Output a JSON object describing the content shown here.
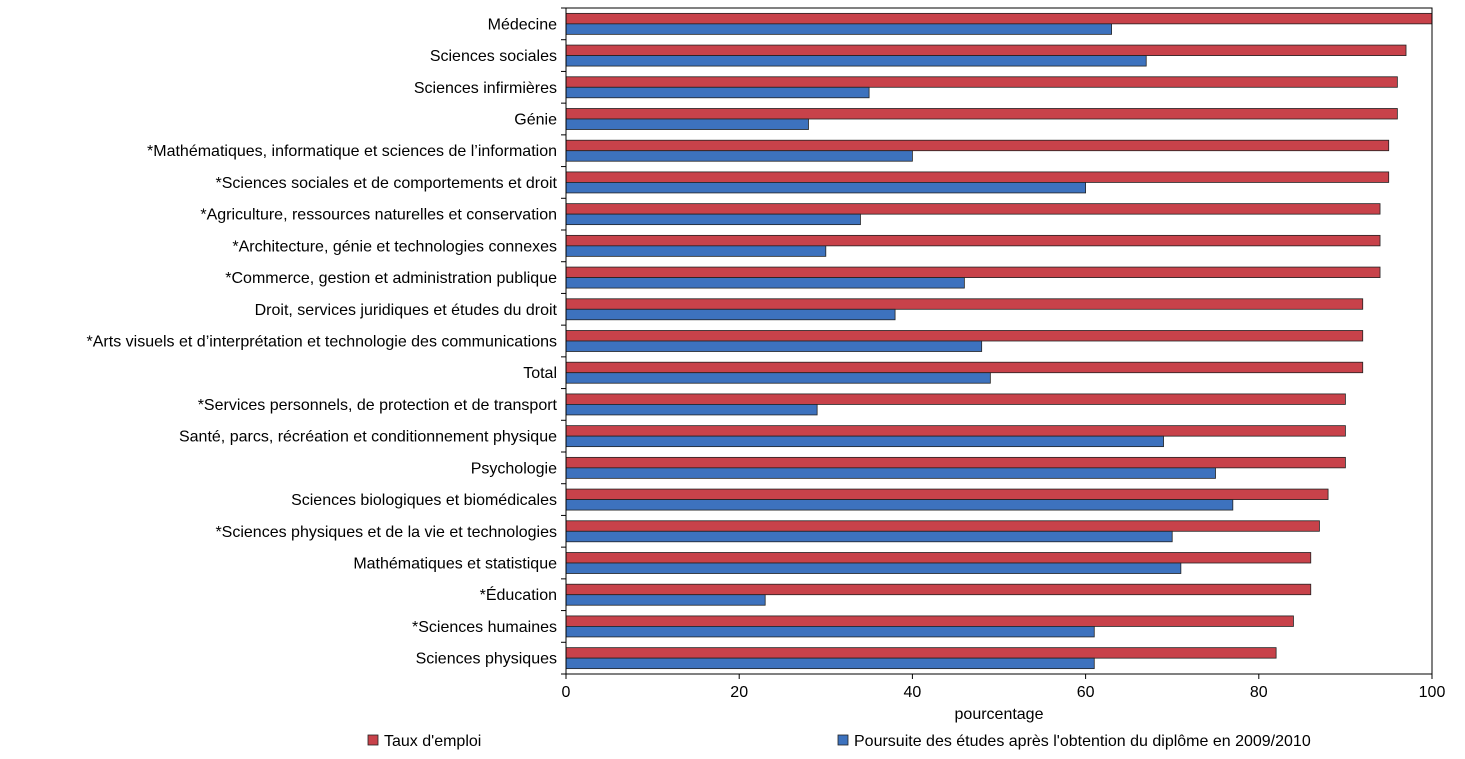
{
  "chart_data": {
    "type": "bar",
    "orientation": "horizontal",
    "title": "",
    "xlabel": "pourcentage",
    "ylabel": "",
    "xlim": [
      0,
      100
    ],
    "xticks": [
      0,
      20,
      40,
      60,
      80,
      100
    ],
    "grid": false,
    "legend_position": "bottom",
    "categories": [
      "Médecine",
      "Sciences sociales",
      "Sciences infirmières",
      "Génie",
      "*Mathématiques, informatique et sciences de l’information",
      "*Sciences sociales et de comportements et droit",
      "*Agriculture, ressources naturelles et conservation",
      "*Architecture, génie et technologies connexes",
      "*Commerce, gestion et administration publique",
      "Droit, services juridiques et études du droit",
      "*Arts visuels et d’interprétation et technologie des communications",
      "Total",
      "*Services personnels, de protection et de transport",
      "Santé, parcs, récréation et conditionnement physique",
      "Psychologie",
      "Sciences biologiques et biomédicales",
      "*Sciences physiques et de la vie et technologies",
      "Mathématiques et statistique",
      "*Éducation",
      "*Sciences humaines",
      "Sciences physiques"
    ],
    "series": [
      {
        "name": "Taux d'emploi",
        "color": "#c8424a",
        "values": [
          100,
          97,
          96,
          96,
          95,
          95,
          94,
          94,
          94,
          92,
          92,
          92,
          90,
          90,
          90,
          88,
          87,
          86,
          86,
          84,
          82
        ]
      },
      {
        "name": "Poursuite des études après l'obtention du diplôme en 2009/2010",
        "color": "#3d72be",
        "values": [
          63,
          67,
          35,
          28,
          40,
          60,
          34,
          30,
          46,
          38,
          48,
          49,
          29,
          69,
          75,
          77,
          70,
          71,
          23,
          61,
          61
        ]
      }
    ]
  }
}
